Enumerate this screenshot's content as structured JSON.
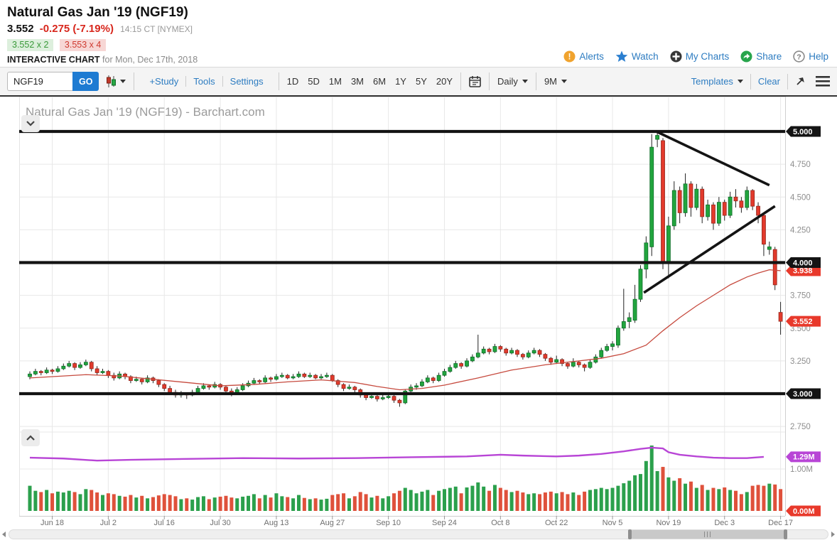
{
  "header": {
    "title": "Natural Gas Jan '19 (NGF19)",
    "last_price": "3.552",
    "change": "-0.275 (-7.19%)",
    "quote_time": "14:15 CT [NYMEX]",
    "bid": "3.552 x 2",
    "ask": "3.553 x 4",
    "chart_label": "INTERACTIVE CHART",
    "chart_date": "for Mon, Dec 17th, 2018",
    "links": [
      {
        "label": "Alerts",
        "icon": "alert-icon"
      },
      {
        "label": "Watch",
        "icon": "star-icon"
      },
      {
        "label": "My Charts",
        "icon": "plus-circle-icon"
      },
      {
        "label": "Share",
        "icon": "share-icon"
      },
      {
        "label": "Help",
        "icon": "help-icon"
      }
    ]
  },
  "toolbar": {
    "symbol_value": "NGF19",
    "go_label": "GO",
    "study_links": [
      "+Study",
      "Tools",
      "Settings"
    ],
    "ranges": [
      "1D",
      "5D",
      "1M",
      "3M",
      "6M",
      "1Y",
      "5Y",
      "20Y"
    ],
    "frequency": "Daily",
    "span": "9M",
    "templates_label": "Templates",
    "clear_label": "Clear"
  },
  "colors": {
    "candle_up": "#22a53e",
    "candle_down": "#e23a2c",
    "volume_up": "#2ba04c",
    "volume_down": "#df513b",
    "ma_line": "#c64a3e",
    "open_interest_line": "#b845d6",
    "annotation_black": "#141414",
    "badge_black": "#141414",
    "badge_red": "#e8392b",
    "badge_purple": "#b845d6",
    "link_blue": "#2d7cc1",
    "grid": "#e8e8e8",
    "axis_text": "#8e8e8e"
  },
  "chart_data": {
    "type": "candlestick",
    "title": "Natural Gas Jan '19 (NGF19) - Barchart.com",
    "frequency": "Daily",
    "x_labels": [
      [
        "Jun 18",
        4
      ],
      [
        "Jul 2",
        14
      ],
      [
        "Jul 16",
        24
      ],
      [
        "Jul 30",
        34
      ],
      [
        "Aug 13",
        44
      ],
      [
        "Aug 27",
        54
      ],
      [
        "Sep 10",
        64
      ],
      [
        "Sep 24",
        74
      ],
      [
        "Oct 8",
        84
      ],
      [
        "Oct 22",
        94
      ],
      [
        "Nov 5",
        104
      ],
      [
        "Nov 19",
        114
      ],
      [
        "Dec 3",
        124
      ],
      [
        "Dec 17",
        134
      ]
    ],
    "price_axis": {
      "min": 2.71,
      "max": 5.06,
      "gridlines": [
        4.75,
        4.5,
        4.25,
        3.75,
        3.5,
        3.25,
        2.75
      ],
      "black_lines": [
        5.0,
        4.0,
        3.0
      ]
    },
    "price_ticks": [
      {
        "v": 4.75,
        "label": "4.750",
        "style": "plain"
      },
      {
        "v": 4.5,
        "label": "4.500",
        "style": "plain"
      },
      {
        "v": 4.25,
        "label": "4.250",
        "style": "plain"
      },
      {
        "v": 3.75,
        "label": "3.750",
        "style": "plain"
      },
      {
        "v": 3.5,
        "label": "3.500",
        "style": "plain"
      },
      {
        "v": 3.25,
        "label": "3.250",
        "style": "plain"
      },
      {
        "v": 2.75,
        "label": "2.750",
        "style": "plain"
      },
      {
        "v": 3.938,
        "label": "3.938",
        "style": "red"
      },
      {
        "v": 3.552,
        "label": "3.552",
        "style": "red"
      },
      {
        "v": 5.0,
        "label": "5.000",
        "style": "black"
      },
      {
        "v": 4.0,
        "label": "4.000",
        "style": "black"
      },
      {
        "v": 3.0,
        "label": "3.000",
        "style": "black"
      }
    ],
    "volume_axis": {
      "unit": "M",
      "gridline": 1.0
    },
    "volume_ticks": [
      {
        "m": 1.0,
        "label": "1.00M",
        "style": "plain"
      },
      {
        "m": 1.29,
        "label": "1.29M",
        "style": "purple"
      },
      {
        "m": 0.0,
        "label": "0.00M",
        "style": "red"
      }
    ],
    "candles": [
      [
        3.13,
        3.17,
        3.11,
        3.15,
        0.6
      ],
      [
        3.15,
        3.19,
        3.14,
        3.17,
        0.48
      ],
      [
        3.17,
        3.18,
        3.14,
        3.16,
        0.45
      ],
      [
        3.16,
        3.2,
        3.15,
        3.18,
        0.5
      ],
      [
        3.18,
        3.19,
        3.15,
        3.17,
        0.42
      ],
      [
        3.17,
        3.21,
        3.16,
        3.19,
        0.46
      ],
      [
        3.19,
        3.23,
        3.18,
        3.21,
        0.44
      ],
      [
        3.21,
        3.25,
        3.2,
        3.23,
        0.48
      ],
      [
        3.23,
        3.24,
        3.18,
        3.2,
        0.45
      ],
      [
        3.2,
        3.24,
        3.19,
        3.22,
        0.4
      ],
      [
        3.22,
        3.26,
        3.21,
        3.24,
        0.52
      ],
      [
        3.24,
        3.25,
        3.17,
        3.19,
        0.5
      ],
      [
        3.19,
        3.21,
        3.14,
        3.16,
        0.44
      ],
      [
        3.16,
        3.19,
        3.15,
        3.17,
        0.38
      ],
      [
        3.17,
        3.18,
        3.12,
        3.14,
        0.42
      ],
      [
        3.14,
        3.16,
        3.1,
        3.12,
        0.4
      ],
      [
        3.12,
        3.17,
        3.11,
        3.15,
        0.36
      ],
      [
        3.15,
        3.16,
        3.11,
        3.13,
        0.34
      ],
      [
        3.13,
        3.14,
        3.08,
        3.1,
        0.38
      ],
      [
        3.1,
        3.13,
        3.09,
        3.11,
        0.32
      ],
      [
        3.11,
        3.12,
        3.07,
        3.09,
        0.36
      ],
      [
        3.09,
        3.14,
        3.08,
        3.12,
        0.3
      ],
      [
        3.12,
        3.13,
        3.08,
        3.1,
        0.33
      ],
      [
        3.1,
        3.11,
        3.05,
        3.07,
        0.37
      ],
      [
        3.07,
        3.08,
        3.02,
        3.04,
        0.4
      ],
      [
        3.04,
        3.06,
        2.99,
        3.01,
        0.38
      ],
      [
        3.01,
        3.03,
        2.97,
        2.99,
        0.35
      ],
      [
        2.99,
        3.02,
        2.97,
        3.0,
        0.28
      ],
      [
        3.0,
        3.01,
        2.96,
        2.99,
        0.3
      ],
      [
        2.99,
        3.03,
        2.98,
        3.01,
        0.27
      ],
      [
        3.01,
        3.06,
        3.0,
        3.04,
        0.33
      ],
      [
        3.04,
        3.08,
        3.03,
        3.06,
        0.35
      ],
      [
        3.06,
        3.07,
        3.03,
        3.05,
        0.28
      ],
      [
        3.05,
        3.09,
        3.04,
        3.07,
        0.32
      ],
      [
        3.07,
        3.08,
        3.03,
        3.05,
        0.34
      ],
      [
        3.05,
        3.06,
        3.0,
        3.02,
        0.36
      ],
      [
        3.02,
        3.04,
        2.98,
        3.0,
        0.32
      ],
      [
        3.0,
        3.05,
        2.99,
        3.03,
        0.3
      ],
      [
        3.03,
        3.08,
        3.02,
        3.06,
        0.34
      ],
      [
        3.06,
        3.1,
        3.05,
        3.08,
        0.36
      ],
      [
        3.08,
        3.12,
        3.07,
        3.1,
        0.4
      ],
      [
        3.1,
        3.11,
        3.07,
        3.09,
        0.3
      ],
      [
        3.09,
        3.14,
        3.08,
        3.12,
        0.38
      ],
      [
        3.12,
        3.13,
        3.09,
        3.11,
        0.32
      ],
      [
        3.11,
        3.15,
        3.1,
        3.13,
        0.42
      ],
      [
        3.13,
        3.16,
        3.12,
        3.14,
        0.35
      ],
      [
        3.14,
        3.15,
        3.11,
        3.12,
        0.33
      ],
      [
        3.12,
        3.15,
        3.11,
        3.13,
        0.3
      ],
      [
        3.13,
        3.17,
        3.12,
        3.15,
        0.38
      ],
      [
        3.15,
        3.16,
        3.12,
        3.13,
        0.31
      ],
      [
        3.13,
        3.16,
        3.12,
        3.14,
        0.28
      ],
      [
        3.14,
        3.15,
        3.11,
        3.12,
        0.3
      ],
      [
        3.12,
        3.15,
        3.11,
        3.13,
        0.27
      ],
      [
        3.13,
        3.16,
        3.12,
        3.14,
        0.29
      ],
      [
        3.14,
        3.15,
        3.09,
        3.1,
        0.38
      ],
      [
        3.1,
        3.11,
        3.05,
        3.07,
        0.4
      ],
      [
        3.07,
        3.08,
        3.02,
        3.04,
        0.42
      ],
      [
        3.04,
        3.07,
        3.03,
        3.05,
        0.3
      ],
      [
        3.05,
        3.06,
        3.01,
        3.03,
        0.35
      ],
      [
        3.03,
        3.04,
        2.97,
        2.99,
        0.45
      ],
      [
        2.99,
        3.0,
        2.95,
        2.97,
        0.4
      ],
      [
        2.97,
        3.0,
        2.96,
        2.98,
        0.32
      ],
      [
        2.98,
        2.99,
        2.94,
        2.96,
        0.36
      ],
      [
        2.96,
        2.99,
        2.95,
        2.97,
        0.3
      ],
      [
        2.97,
        3.0,
        2.96,
        2.98,
        0.35
      ],
      [
        2.98,
        2.99,
        2.93,
        2.95,
        0.42
      ],
      [
        2.95,
        2.96,
        2.9,
        2.93,
        0.48
      ],
      [
        2.93,
        3.03,
        2.92,
        3.02,
        0.55
      ],
      [
        3.02,
        3.07,
        3.01,
        3.05,
        0.5
      ],
      [
        3.05,
        3.08,
        3.03,
        3.06,
        0.42
      ],
      [
        3.06,
        3.11,
        3.05,
        3.09,
        0.46
      ],
      [
        3.09,
        3.14,
        3.08,
        3.12,
        0.5
      ],
      [
        3.12,
        3.13,
        3.08,
        3.1,
        0.38
      ],
      [
        3.1,
        3.16,
        3.09,
        3.14,
        0.48
      ],
      [
        3.14,
        3.19,
        3.13,
        3.17,
        0.52
      ],
      [
        3.17,
        3.22,
        3.16,
        3.2,
        0.55
      ],
      [
        3.2,
        3.25,
        3.19,
        3.23,
        0.58
      ],
      [
        3.23,
        3.24,
        3.19,
        3.21,
        0.42
      ],
      [
        3.21,
        3.27,
        3.2,
        3.25,
        0.56
      ],
      [
        3.25,
        3.3,
        3.24,
        3.28,
        0.6
      ],
      [
        3.28,
        3.45,
        3.27,
        3.31,
        0.68
      ],
      [
        3.31,
        3.36,
        3.3,
        3.34,
        0.58
      ],
      [
        3.34,
        3.35,
        3.3,
        3.32,
        0.48
      ],
      [
        3.32,
        3.38,
        3.31,
        3.36,
        0.62
      ],
      [
        3.36,
        3.37,
        3.32,
        3.34,
        0.55
      ],
      [
        3.34,
        3.35,
        3.29,
        3.31,
        0.5
      ],
      [
        3.31,
        3.35,
        3.3,
        3.33,
        0.45
      ],
      [
        3.33,
        3.34,
        3.28,
        3.3,
        0.48
      ],
      [
        3.3,
        3.31,
        3.26,
        3.28,
        0.44
      ],
      [
        3.28,
        3.33,
        3.27,
        3.31,
        0.4
      ],
      [
        3.31,
        3.35,
        3.3,
        3.33,
        0.42
      ],
      [
        3.33,
        3.34,
        3.28,
        3.3,
        0.4
      ],
      [
        3.3,
        3.31,
        3.25,
        3.27,
        0.44
      ],
      [
        3.27,
        3.28,
        3.22,
        3.24,
        0.46
      ],
      [
        3.24,
        3.29,
        3.23,
        3.26,
        0.42
      ],
      [
        3.26,
        3.27,
        3.21,
        3.23,
        0.45
      ],
      [
        3.23,
        3.24,
        3.19,
        3.21,
        0.4
      ],
      [
        3.21,
        3.27,
        3.2,
        3.24,
        0.44
      ],
      [
        3.24,
        3.25,
        3.2,
        3.22,
        0.38
      ],
      [
        3.22,
        3.23,
        3.17,
        3.2,
        0.46
      ],
      [
        3.2,
        3.26,
        3.19,
        3.24,
        0.5
      ],
      [
        3.24,
        3.3,
        3.23,
        3.28,
        0.52
      ],
      [
        3.28,
        3.35,
        3.27,
        3.33,
        0.55
      ],
      [
        3.33,
        3.38,
        3.32,
        3.36,
        0.52
      ],
      [
        3.36,
        3.4,
        3.33,
        3.38,
        0.55
      ],
      [
        3.37,
        3.52,
        3.35,
        3.5,
        0.6
      ],
      [
        3.5,
        3.8,
        3.48,
        3.55,
        0.66
      ],
      [
        3.55,
        3.62,
        3.5,
        3.58,
        0.72
      ],
      [
        3.56,
        3.83,
        3.54,
        3.72,
        0.85
      ],
      [
        3.72,
        3.98,
        3.7,
        3.95,
        0.88
      ],
      [
        3.95,
        4.2,
        3.88,
        4.15,
        1.19
      ],
      [
        4.12,
        4.98,
        4.05,
        4.88,
        1.56
      ],
      [
        4.94,
        5.0,
        4.88,
        4.97,
        0.95
      ],
      [
        4.93,
        4.95,
        3.95,
        4.0,
        1.05
      ],
      [
        4.0,
        4.35,
        3.88,
        4.28,
        0.8
      ],
      [
        4.28,
        4.62,
        4.25,
        4.55,
        0.72
      ],
      [
        4.55,
        4.58,
        4.3,
        4.38,
        0.78
      ],
      [
        4.38,
        4.68,
        4.35,
        4.6,
        0.65
      ],
      [
        4.6,
        4.62,
        4.35,
        4.42,
        0.7
      ],
      [
        4.42,
        4.6,
        4.4,
        4.56,
        0.55
      ],
      [
        4.56,
        4.58,
        4.3,
        4.35,
        0.62
      ],
      [
        4.35,
        4.48,
        4.32,
        4.44,
        0.5
      ],
      [
        4.44,
        4.46,
        4.25,
        4.3,
        0.55
      ],
      [
        4.3,
        4.5,
        4.28,
        4.46,
        0.52
      ],
      [
        4.46,
        4.48,
        4.32,
        4.36,
        0.56
      ],
      [
        4.36,
        4.54,
        4.34,
        4.5,
        0.5
      ],
      [
        4.5,
        4.56,
        4.42,
        4.47,
        0.48
      ],
      [
        4.47,
        4.5,
        4.38,
        4.42,
        0.4
      ],
      [
        4.42,
        4.58,
        4.4,
        4.55,
        0.45
      ],
      [
        4.55,
        4.56,
        4.4,
        4.43,
        0.6
      ],
      [
        4.43,
        4.46,
        4.3,
        4.36,
        0.62
      ],
      [
        4.36,
        4.38,
        4.05,
        4.14,
        0.6
      ],
      [
        4.1,
        4.16,
        4.06,
        4.12,
        0.65
      ],
      [
        4.1,
        4.12,
        3.79,
        3.83,
        0.63
      ],
      [
        3.62,
        3.7,
        3.45,
        3.552,
        0.52
      ]
    ],
    "ma_line_points": [
      [
        0,
        3.12
      ],
      [
        6,
        3.135
      ],
      [
        10,
        3.145
      ],
      [
        16,
        3.135
      ],
      [
        22,
        3.11
      ],
      [
        28,
        3.085
      ],
      [
        34,
        3.06
      ],
      [
        40,
        3.07
      ],
      [
        46,
        3.09
      ],
      [
        52,
        3.105
      ],
      [
        58,
        3.085
      ],
      [
        62,
        3.055
      ],
      [
        66,
        3.03
      ],
      [
        70,
        3.04
      ],
      [
        74,
        3.065
      ],
      [
        80,
        3.12
      ],
      [
        86,
        3.18
      ],
      [
        92,
        3.22
      ],
      [
        98,
        3.25
      ],
      [
        102,
        3.27
      ],
      [
        106,
        3.305
      ],
      [
        110,
        3.37
      ],
      [
        113,
        3.48
      ],
      [
        116,
        3.58
      ],
      [
        119,
        3.67
      ],
      [
        122,
        3.75
      ],
      [
        125,
        3.83
      ],
      [
        128,
        3.89
      ],
      [
        130,
        3.92
      ],
      [
        132,
        3.945
      ],
      [
        134,
        3.938
      ]
    ],
    "open_interest_points": [
      [
        0,
        1.27
      ],
      [
        6,
        1.25
      ],
      [
        12,
        1.2
      ],
      [
        18,
        1.22
      ],
      [
        28,
        1.24
      ],
      [
        38,
        1.26
      ],
      [
        48,
        1.25
      ],
      [
        58,
        1.26
      ],
      [
        68,
        1.28
      ],
      [
        78,
        1.3
      ],
      [
        84,
        1.34
      ],
      [
        88,
        1.32
      ],
      [
        94,
        1.3
      ],
      [
        98,
        1.32
      ],
      [
        102,
        1.36
      ],
      [
        106,
        1.42
      ],
      [
        109,
        1.48
      ],
      [
        111,
        1.51
      ],
      [
        113,
        1.49
      ],
      [
        114,
        1.4
      ],
      [
        116,
        1.34
      ],
      [
        119,
        1.3
      ],
      [
        122,
        1.27
      ],
      [
        125,
        1.26
      ],
      [
        128,
        1.26
      ],
      [
        131,
        1.29
      ]
    ],
    "trendlines": [
      {
        "from_i": 111.8,
        "from_p": 5.0,
        "to_i": 132.0,
        "to_p": 4.59
      },
      {
        "from_i": 109.6,
        "from_p": 3.77,
        "to_i": 133.0,
        "to_p": 4.43
      }
    ]
  }
}
